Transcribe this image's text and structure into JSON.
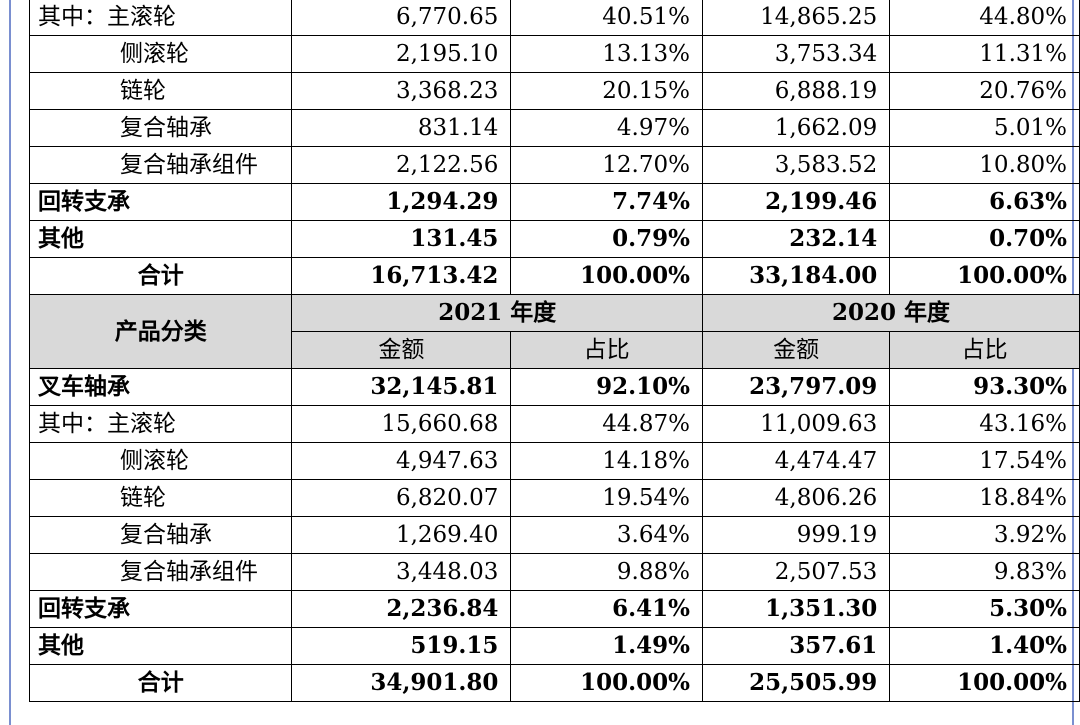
{
  "top_rows": [
    {
      "category": "其中：主滚轮",
      "amt_a": "6,770.65",
      "pct_a": "40.51%",
      "amt_b": "14,865.25",
      "pct_b": "44.80%",
      "style": "normal",
      "indent": false
    },
    {
      "category": "侧滚轮",
      "amt_a": "2,195.10",
      "pct_a": "13.13%",
      "amt_b": "3,753.34",
      "pct_b": "11.31%",
      "style": "normal",
      "indent": true
    },
    {
      "category": "链轮",
      "amt_a": "3,368.23",
      "pct_a": "20.15%",
      "amt_b": "6,888.19",
      "pct_b": "20.76%",
      "style": "normal",
      "indent": true
    },
    {
      "category": "复合轴承",
      "amt_a": "831.14",
      "pct_a": "4.97%",
      "amt_b": "1,662.09",
      "pct_b": "5.01%",
      "style": "normal",
      "indent": true
    },
    {
      "category": "复合轴承组件",
      "amt_a": "2,122.56",
      "pct_a": "12.70%",
      "amt_b": "3,583.52",
      "pct_b": "10.80%",
      "style": "normal",
      "indent": true
    },
    {
      "category": "回转支承",
      "amt_a": "1,294.29",
      "pct_a": "7.74%",
      "amt_b": "2,199.46",
      "pct_b": "6.63%",
      "style": "bold",
      "indent": false
    },
    {
      "category": "其他",
      "amt_a": "131.45",
      "pct_a": "0.79%",
      "amt_b": "232.14",
      "pct_b": "0.70%",
      "style": "bold",
      "indent": false
    },
    {
      "category": "合计",
      "amt_a": "16,713.42",
      "pct_a": "100.00%",
      "amt_b": "33,184.00",
      "pct_b": "100.00%",
      "style": "total",
      "indent": false
    }
  ],
  "header": {
    "category_label": "产品分类",
    "year_a": "2021 年度",
    "year_b": "2020 年度",
    "amount_label": "金额",
    "ratio_label": "占比"
  },
  "bottom_rows": [
    {
      "category": "叉车轴承",
      "amt_a": "32,145.81",
      "pct_a": "92.10%",
      "amt_b": "23,797.09",
      "pct_b": "93.30%",
      "style": "bold",
      "indent": false
    },
    {
      "category": "其中：主滚轮",
      "amt_a": "15,660.68",
      "pct_a": "44.87%",
      "amt_b": "11,009.63",
      "pct_b": "43.16%",
      "style": "normal",
      "indent": false
    },
    {
      "category": "侧滚轮",
      "amt_a": "4,947.63",
      "pct_a": "14.18%",
      "amt_b": "4,474.47",
      "pct_b": "17.54%",
      "style": "normal",
      "indent": true
    },
    {
      "category": "链轮",
      "amt_a": "6,820.07",
      "pct_a": "19.54%",
      "amt_b": "4,806.26",
      "pct_b": "18.84%",
      "style": "normal",
      "indent": true
    },
    {
      "category": "复合轴承",
      "amt_a": "1,269.40",
      "pct_a": "3.64%",
      "amt_b": "999.19",
      "pct_b": "3.92%",
      "style": "normal",
      "indent": true
    },
    {
      "category": "复合轴承组件",
      "amt_a": "3,448.03",
      "pct_a": "9.88%",
      "amt_b": "2,507.53",
      "pct_b": "9.83%",
      "style": "normal",
      "indent": true
    },
    {
      "category": "回转支承",
      "amt_a": "2,236.84",
      "pct_a": "6.41%",
      "amt_b": "1,351.30",
      "pct_b": "5.30%",
      "style": "bold",
      "indent": false
    },
    {
      "category": "其他",
      "amt_a": "519.15",
      "pct_a": "1.49%",
      "amt_b": "357.61",
      "pct_b": "1.40%",
      "style": "bold",
      "indent": false
    },
    {
      "category": "合计",
      "amt_a": "34,901.80",
      "pct_a": "100.00%",
      "amt_b": "25,505.99",
      "pct_b": "100.00%",
      "style": "total",
      "indent": false
    }
  ]
}
